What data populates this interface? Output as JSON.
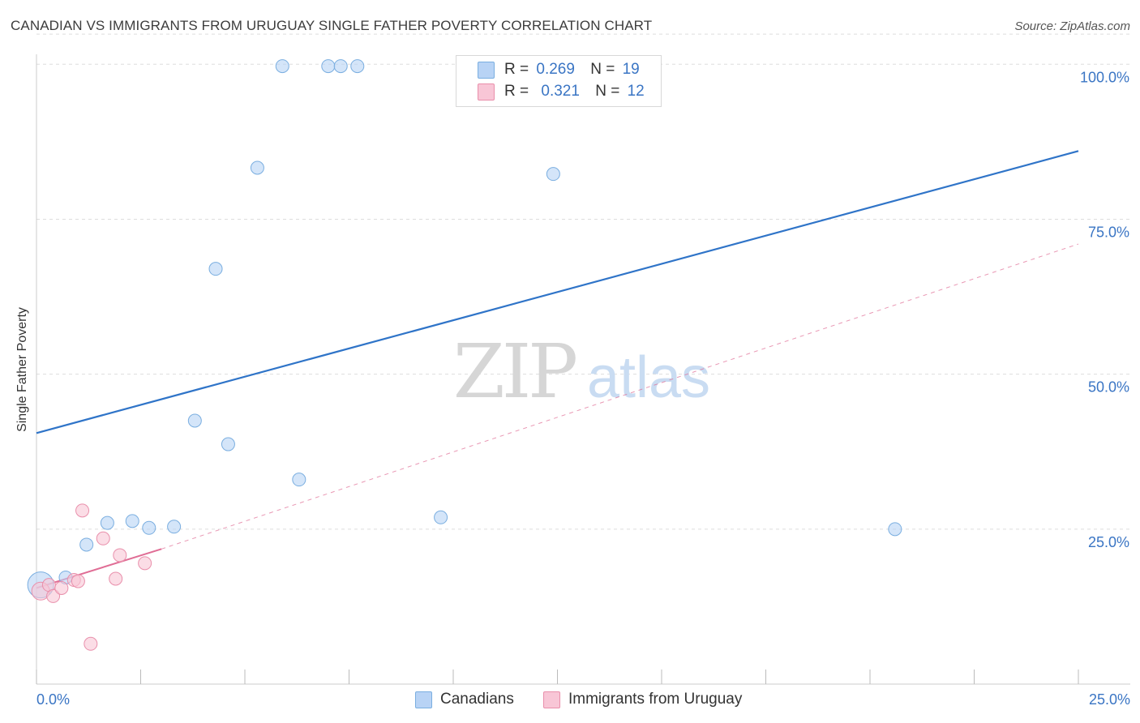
{
  "header": {
    "title": "CANADIAN VS IMMIGRANTS FROM URUGUAY SINGLE FATHER POVERTY CORRELATION CHART",
    "source": "Source: ZipAtlas.com"
  },
  "watermark": {
    "zip": "ZIP",
    "atlas": "atlas"
  },
  "stats_legend": {
    "r_label": "R =",
    "n_label": "N =",
    "rows": [
      {
        "r": "0.269",
        "n": "19"
      },
      {
        "r": "0.321",
        "n": "12"
      }
    ]
  },
  "colors": {
    "canadians_fill": "#b8d3f5",
    "canadians_stroke": "#7aaee0",
    "canadians_line": "#2f74c8",
    "uruguay_fill": "#f8c6d6",
    "uruguay_stroke": "#e98fab",
    "uruguay_line": "#e06d95",
    "tick_label": "#3a75c4",
    "grid": "#dddddd"
  },
  "chart_data": {
    "type": "scatter",
    "title": "CANADIAN VS IMMIGRANTS FROM URUGUAY SINGLE FATHER POVERTY CORRELATION CHART",
    "xlabel": "",
    "ylabel": "Single Father Poverty",
    "xlim": [
      0,
      25
    ],
    "ylim": [
      0,
      105
    ],
    "x_tick_labels": [
      "0.0%",
      "25.0%"
    ],
    "y_ticks": [
      25,
      50,
      75,
      100
    ],
    "y_tick_labels": [
      "25.0%",
      "50.0%",
      "75.0%",
      "100.0%"
    ],
    "grid": true,
    "legend_position": "bottom",
    "series": [
      {
        "name": "Canadians",
        "r": 0.269,
        "n": 19,
        "points": [
          [
            0.1,
            16.0
          ],
          [
            0.7,
            17.2
          ],
          [
            1.2,
            22.5
          ],
          [
            1.7,
            26.0
          ],
          [
            2.3,
            26.3
          ],
          [
            2.7,
            25.2
          ],
          [
            3.3,
            25.4
          ],
          [
            3.8,
            42.5
          ],
          [
            4.3,
            67.0
          ],
          [
            4.6,
            38.7
          ],
          [
            5.3,
            83.3
          ],
          [
            5.9,
            99.7
          ],
          [
            6.3,
            33.0
          ],
          [
            7.0,
            99.7
          ],
          [
            7.3,
            99.7
          ],
          [
            7.7,
            99.7
          ],
          [
            9.7,
            26.9
          ],
          [
            12.4,
            82.3
          ],
          [
            20.6,
            25.0
          ]
        ],
        "trend": {
          "x": [
            0,
            25
          ],
          "y": [
            40.5,
            86.0
          ]
        }
      },
      {
        "name": "Immigrants from Uruguay",
        "r": 0.321,
        "n": 12,
        "points": [
          [
            0.1,
            15.0
          ],
          [
            0.3,
            16.0
          ],
          [
            0.4,
            14.2
          ],
          [
            0.6,
            15.5
          ],
          [
            0.9,
            16.8
          ],
          [
            1.0,
            16.6
          ],
          [
            1.1,
            28.0
          ],
          [
            1.3,
            6.5
          ],
          [
            1.6,
            23.5
          ],
          [
            1.9,
            17.0
          ],
          [
            2.0,
            20.8
          ],
          [
            2.6,
            19.5
          ]
        ],
        "trend": {
          "x": [
            0,
            3.0
          ],
          "y": [
            15.5,
            21.8
          ]
        },
        "trend_extension": {
          "x": [
            3.0,
            25
          ],
          "y": [
            21.8,
            71.0
          ]
        }
      }
    ]
  },
  "bottom_legend": [
    {
      "label": "Canadians"
    },
    {
      "label": "Immigrants from Uruguay"
    }
  ]
}
